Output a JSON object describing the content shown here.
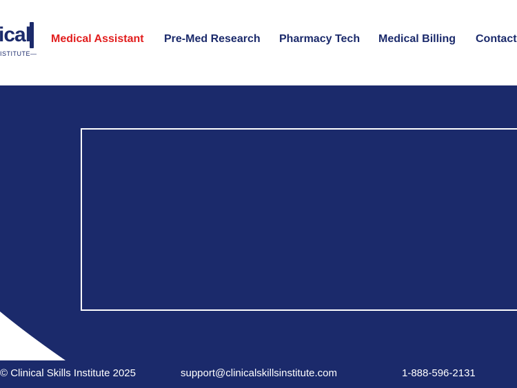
{
  "logo": {
    "text": "ical",
    "subtext": "ISTITUTE—"
  },
  "nav": {
    "items": [
      {
        "label": "Medical Assistant",
        "active": true
      },
      {
        "label": "Pre-Med Research"
      },
      {
        "label": "Pharmacy Tech"
      },
      {
        "label": "Medical Billing"
      },
      {
        "label": "Contact"
      }
    ]
  },
  "footer": {
    "copyright": "© Clinical Skills Institute 2025",
    "email": "support@clinicalskillsinstitute.com",
    "phone": "1-888-596-2131"
  },
  "colors": {
    "navy": "#1b2a6b",
    "accent": "#e21d1d"
  }
}
